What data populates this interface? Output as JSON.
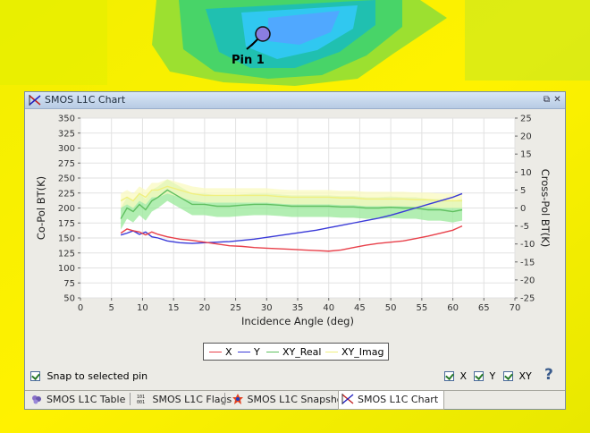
{
  "map": {
    "pin_label": "Pin 1"
  },
  "window": {
    "title": "SMOS L1C Chart",
    "restore_glyph": "⧉",
    "close_glyph": "✕"
  },
  "chart_data": {
    "type": "line",
    "xlabel": "Incidence Angle (deg)",
    "ylabel": "Co-Pol BT(K)",
    "y2label": "Cross-Pol BT(K)",
    "xlim": [
      0,
      70
    ],
    "ylim": [
      50,
      350
    ],
    "y2lim": [
      -25,
      25
    ],
    "x_ticks": [
      0,
      5,
      10,
      15,
      20,
      25,
      30,
      35,
      40,
      45,
      50,
      55,
      60,
      65,
      70
    ],
    "y_ticks": [
      50,
      75,
      100,
      125,
      150,
      175,
      200,
      225,
      250,
      275,
      300,
      325,
      350
    ],
    "y2_ticks": [
      -25,
      -20,
      -15,
      -10,
      -5,
      0,
      5,
      10,
      15,
      20,
      25
    ],
    "grid": true,
    "legend_position": "bottom",
    "series": [
      {
        "name": "X",
        "axis": "left",
        "color": "#e8404a",
        "x": [
          6.5,
          7.5,
          8.5,
          9.5,
          10.5,
          11.5,
          12.5,
          14,
          16,
          18,
          20,
          22,
          24,
          26,
          28,
          30,
          32,
          34,
          36,
          38,
          40,
          42,
          44,
          46,
          48,
          50,
          52,
          54,
          56,
          58,
          60,
          61.5
        ],
        "y": [
          158,
          165,
          162,
          160,
          155,
          160,
          156,
          152,
          148,
          146,
          143,
          140,
          137,
          136,
          134,
          133,
          132,
          131,
          130,
          129,
          128,
          130,
          134,
          138,
          141,
          143,
          145,
          149,
          153,
          158,
          163,
          170
        ]
      },
      {
        "name": "Y",
        "axis": "left",
        "color": "#3a3ad8",
        "x": [
          6.5,
          7.5,
          8.5,
          9.5,
          10.5,
          11.5,
          12.5,
          14,
          16,
          18,
          20,
          22,
          24,
          26,
          28,
          30,
          32,
          34,
          36,
          38,
          40,
          42,
          44,
          46,
          48,
          50,
          52,
          54,
          56,
          58,
          60,
          61.5
        ],
        "y": [
          155,
          158,
          162,
          156,
          160,
          152,
          150,
          145,
          142,
          141,
          142,
          143,
          144,
          146,
          148,
          151,
          154,
          157,
          160,
          163,
          167,
          171,
          175,
          179,
          183,
          188,
          194,
          200,
          206,
          212,
          218,
          224
        ]
      },
      {
        "name": "XY_Real",
        "axis": "right",
        "color": "#60c060",
        "band_color": "#98e898",
        "x": [
          6.5,
          7.5,
          8.5,
          9.5,
          10.5,
          11.5,
          12.5,
          14,
          16,
          18,
          20,
          22,
          24,
          26,
          28,
          30,
          32,
          34,
          36,
          38,
          40,
          42,
          44,
          46,
          48,
          50,
          52,
          54,
          56,
          58,
          60,
          61.5
        ],
        "y": [
          -3,
          0,
          -1,
          1,
          -0.5,
          2,
          3,
          5,
          3,
          1,
          1,
          0.5,
          0.5,
          0.8,
          1,
          1,
          0.8,
          0.5,
          0.5,
          0.5,
          0.5,
          0.3,
          0.3,
          0,
          0,
          0.2,
          0,
          0,
          -0.5,
          -0.5,
          -1,
          -0.5
        ],
        "band_half_width": 3
      },
      {
        "name": "XY_Imag",
        "axis": "right",
        "color": "#f0f080",
        "band_color": "#fafac0",
        "x": [
          6.5,
          7.5,
          8.5,
          9.5,
          10.5,
          11.5,
          12.5,
          14,
          16,
          18,
          20,
          22,
          24,
          26,
          28,
          30,
          32,
          34,
          36,
          38,
          40,
          42,
          44,
          46,
          48,
          50,
          52,
          54,
          56,
          58,
          60,
          61.5
        ],
        "y": [
          2,
          3,
          2,
          4,
          3,
          5,
          5,
          6,
          5,
          4,
          3.5,
          3.5,
          3.5,
          3.5,
          3.5,
          3.5,
          3.2,
          3,
          3,
          3,
          3,
          2.8,
          2.8,
          2.5,
          2.5,
          2.5,
          2.5,
          2.3,
          2.3,
          2,
          2,
          2
        ],
        "band_half_width": 2
      }
    ]
  },
  "controls": {
    "snap_label": "Snap to selected pin",
    "x_label": "X",
    "y_label": "Y",
    "xy_label": "XY",
    "help_glyph": "?"
  },
  "tabs": [
    {
      "label": "SMOS L1C Table"
    },
    {
      "label": "SMOS L1C Flags"
    },
    {
      "label": "SMOS L1C Snapshot"
    },
    {
      "label": "SMOS L1C Chart"
    }
  ],
  "colors": {
    "window_bg": "#ecebe6",
    "title_bg": "#c6d6ec",
    "map_yellow": "#f4f000",
    "map_cyan": "#20d0f0"
  }
}
